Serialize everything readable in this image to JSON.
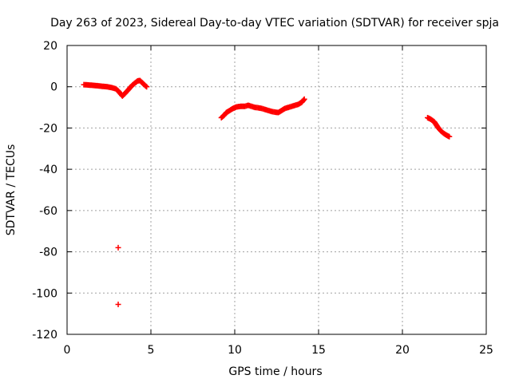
{
  "chart_data": {
    "type": "scatter",
    "title": "Day 263 of 2023, Sidereal Day-to-day VTEC variation (SDTVAR) for receiver spja",
    "xlabel": "GPS time / hours",
    "ylabel": "SDTVAR / TECUs",
    "xlim": [
      0,
      25
    ],
    "ylim": [
      -120,
      20
    ],
    "xticks": [
      0,
      5,
      10,
      15,
      20,
      25
    ],
    "yticks": [
      -120,
      -100,
      -80,
      -60,
      -40,
      -20,
      0,
      20
    ],
    "grid": true,
    "colors": {
      "series": "#ff0000",
      "grid": "#a0a0a0",
      "frame": "#000000"
    },
    "series": [
      {
        "name": "SDTVAR",
        "marker": "plus",
        "segments": [
          [
            [
              1.0,
              1.0
            ],
            [
              1.2,
              0.9
            ],
            [
              1.5,
              0.7
            ],
            [
              1.8,
              0.5
            ],
            [
              2.1,
              0.2
            ],
            [
              2.4,
              0.0
            ],
            [
              2.7,
              -0.5
            ],
            [
              2.9,
              -1.0
            ],
            [
              3.05,
              -2.0
            ],
            [
              3.15,
              -3.0
            ],
            [
              3.3,
              -4.5
            ],
            [
              3.45,
              -3.2
            ],
            [
              3.6,
              -2.0
            ],
            [
              3.75,
              -0.5
            ],
            [
              3.9,
              0.8
            ],
            [
              4.05,
              1.8
            ],
            [
              4.2,
              2.8
            ],
            [
              4.35,
              3.0
            ],
            [
              4.5,
              1.8
            ],
            [
              4.65,
              0.6
            ],
            [
              4.75,
              0.0
            ]
          ],
          [
            [
              9.2,
              -15.0
            ],
            [
              9.35,
              -14.0
            ],
            [
              9.5,
              -12.5
            ],
            [
              9.7,
              -11.5
            ],
            [
              9.9,
              -10.5
            ],
            [
              10.1,
              -9.8
            ],
            [
              10.35,
              -9.5
            ],
            [
              10.6,
              -9.5
            ],
            [
              10.8,
              -9.0
            ],
            [
              11.0,
              -9.5
            ],
            [
              11.2,
              -10.0
            ],
            [
              11.4,
              -10.2
            ],
            [
              11.6,
              -10.5
            ],
            [
              11.8,
              -11.0
            ],
            [
              12.0,
              -11.5
            ],
            [
              12.2,
              -12.0
            ],
            [
              12.4,
              -12.3
            ],
            [
              12.6,
              -12.5
            ],
            [
              12.8,
              -11.5
            ],
            [
              13.0,
              -10.5
            ],
            [
              13.2,
              -10.0
            ],
            [
              13.4,
              -9.5
            ],
            [
              13.6,
              -9.0
            ],
            [
              13.8,
              -8.5
            ],
            [
              14.0,
              -7.5
            ],
            [
              14.15,
              -6.0
            ]
          ],
          [
            [
              21.5,
              -15.0
            ],
            [
              21.7,
              -15.8
            ],
            [
              21.9,
              -17.0
            ],
            [
              22.1,
              -19.5
            ],
            [
              22.3,
              -21.5
            ],
            [
              22.5,
              -22.8
            ],
            [
              22.7,
              -23.8
            ],
            [
              22.8,
              -24.2
            ]
          ],
          [
            [
              3.05,
              -78.0
            ]
          ],
          [
            [
              3.05,
              -105.5
            ]
          ]
        ]
      }
    ]
  }
}
